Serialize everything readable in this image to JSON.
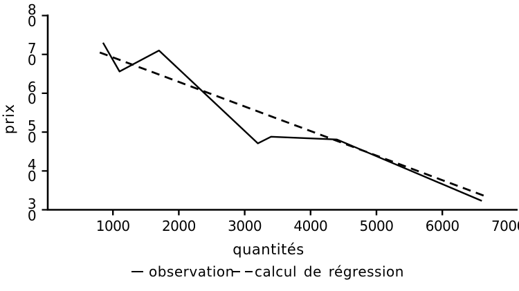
{
  "colors": {
    "ink": "#000000",
    "background": "#ffffff"
  },
  "labels": {
    "y_axis_title": "prix",
    "x_axis_title": "quantités"
  },
  "chart_data": {
    "type": "line",
    "title": "",
    "xlabel": "quantités",
    "ylabel": "prix",
    "xlim": [
      0,
      7150
    ],
    "ylim": [
      30,
      80
    ],
    "grid": false,
    "legend_position": "bottom",
    "x_ticks": [
      1000,
      2000,
      3000,
      4000,
      5000,
      6000,
      7000
    ],
    "x_tick_marks": [
      1000,
      2000,
      3000,
      4000,
      5000,
      6000
    ],
    "y_ticks": [
      80,
      70,
      60,
      50,
      40,
      30
    ],
    "series": [
      {
        "name": "observation",
        "style": "solid",
        "points": [
          [
            850,
            73
          ],
          [
            1100,
            65.6
          ],
          [
            1700,
            71
          ],
          [
            3200,
            47.1
          ],
          [
            3400,
            48.8
          ],
          [
            4400,
            48.1
          ],
          [
            6600,
            32.3
          ]
        ]
      },
      {
        "name": "calcul de régression",
        "style": "dashed",
        "points": [
          [
            800,
            70.5
          ],
          [
            6700,
            33.2
          ]
        ]
      }
    ]
  }
}
